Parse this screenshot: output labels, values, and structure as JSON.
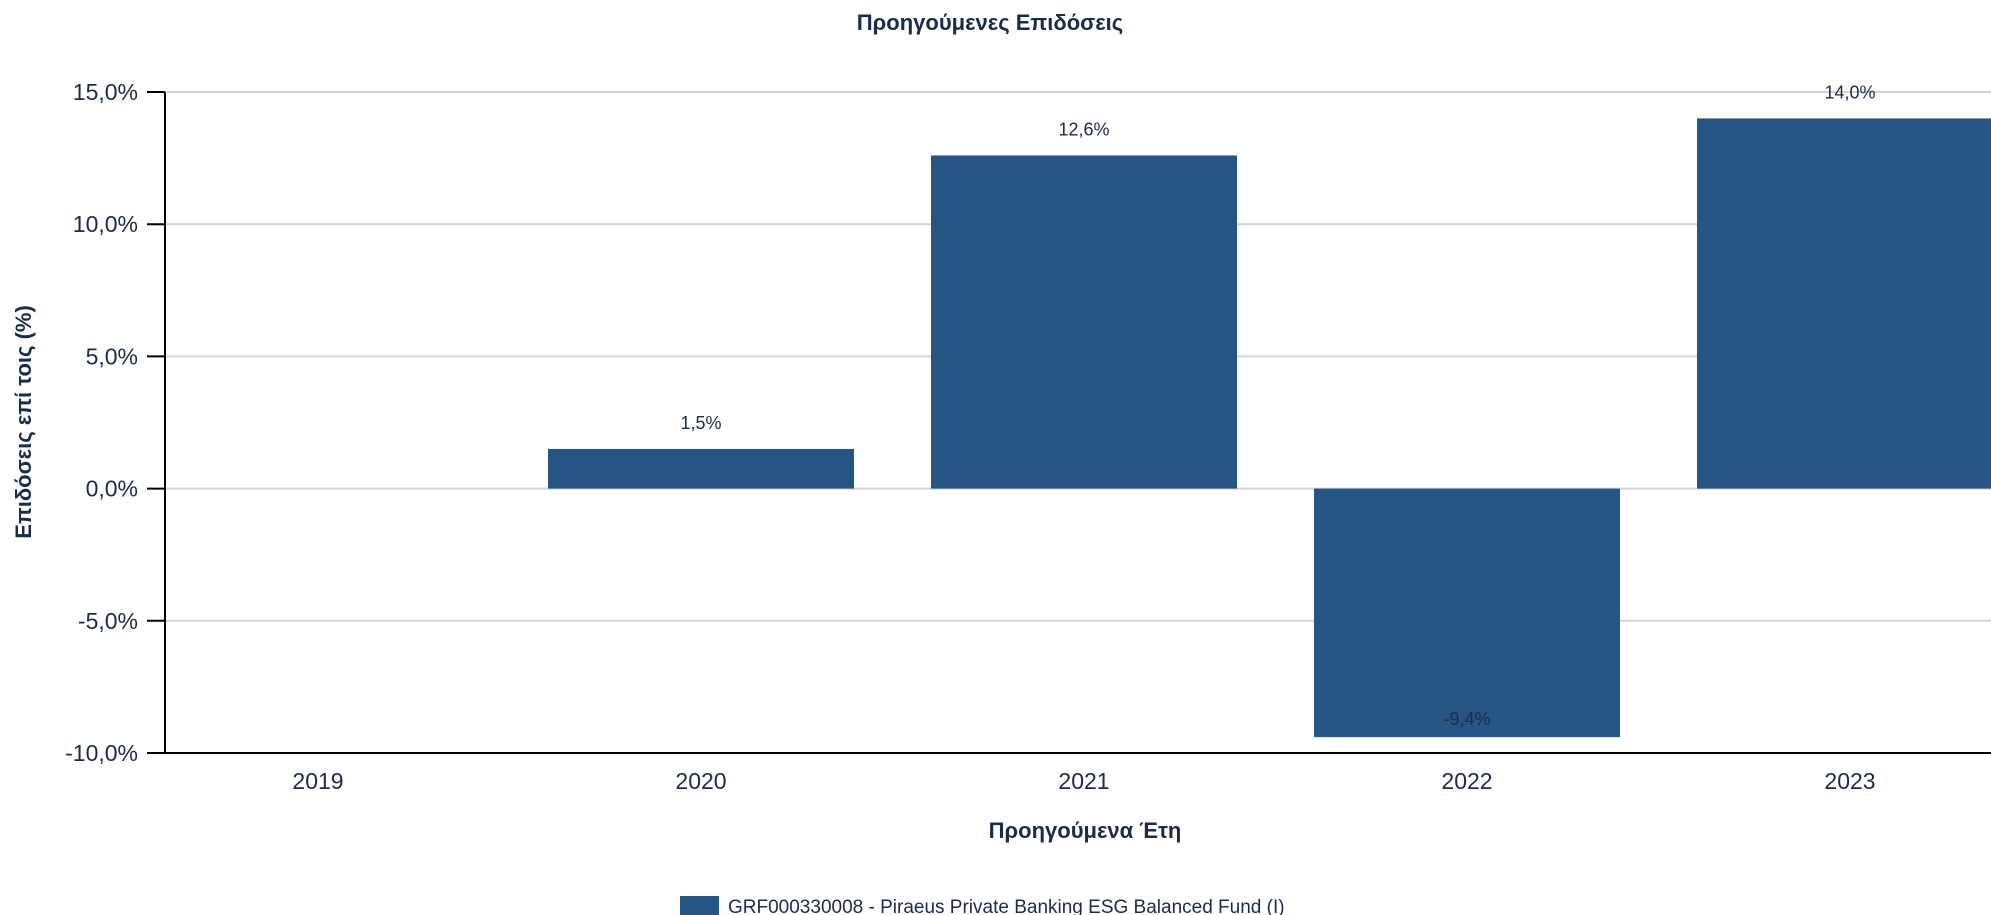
{
  "chart_data": {
    "type": "bar",
    "title": "Προηγούμενες Επιδόσεις",
    "xlabel": "Προηγούμενα Έτη",
    "ylabel": "Επιδόσεις επί τοις (%)",
    "categories": [
      "2019",
      "2020",
      "2021",
      "2022",
      "2023"
    ],
    "series": [
      {
        "name": "GRF000330008 - Piraeus Private Banking ESG Balanced Fund (I)",
        "values": [
          null,
          1.5,
          12.6,
          -9.4,
          14.0
        ],
        "data_labels": [
          "",
          "1,5%",
          "12,6%",
          "-9,4%",
          "14,0%"
        ],
        "color": "#265483"
      }
    ],
    "y_ticks": [
      15,
      10,
      5,
      0,
      -5,
      -10
    ],
    "y_tick_labels": [
      "15,0%",
      "10,0%",
      "5,0%",
      "0,0%",
      "-5,0%",
      "-10,0%"
    ],
    "ylim": [
      -10,
      15
    ],
    "grid": true,
    "legend_position": "bottom"
  }
}
